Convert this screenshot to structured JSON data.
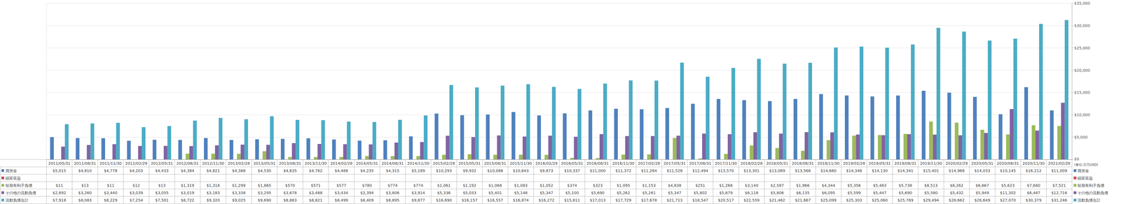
{
  "chart_data": {
    "type": "bar",
    "y_label": "(単位:百万USD)",
    "grid": true,
    "data_labels": true,
    "categories": [
      "2011/05/31",
      "2011/08/31",
      "2011/11/30",
      "2012/02/29",
      "2012/05/31",
      "2012/08/31",
      "2012/11/30",
      "2013/02/28",
      "2013/05/31",
      "2013/08/31",
      "2013/11/30",
      "2014/02/28",
      "2014/05/31",
      "2014/08/31",
      "2014/11/30",
      "2015/02/28",
      "2015/05/31",
      "2015/08/31",
      "2015/11/30",
      "2016/02/29",
      "2016/05/31",
      "2016/08/31",
      "2016/11/30",
      "2017/02/28",
      "2017/05/31",
      "2017/08/31",
      "2017/11/30",
      "2018/02/28",
      "2018/05/31",
      "2018/08/31",
      "2018/11/30",
      "2019/02/28",
      "2019/05/31",
      "2019/08/31",
      "2019/11/30",
      "2020/02/29",
      "2020/05/31",
      "2020/08/31",
      "2020/11/30",
      "2021/02/28"
    ],
    "ylim": [
      0,
      35000
    ],
    "yticks": [
      {
        "value": 0,
        "label": "$0"
      },
      {
        "value": 5000,
        "label": "$5,000"
      },
      {
        "value": 10000,
        "label": "$10,000"
      },
      {
        "value": 15000,
        "label": "$15,000"
      },
      {
        "value": 20000,
        "label": "$20,000"
      },
      {
        "value": 25000,
        "label": "$25,000"
      },
      {
        "value": 30000,
        "label": "$30,000"
      },
      {
        "value": 35000,
        "label": "$35,000"
      }
    ],
    "series": [
      {
        "name": "買掛金",
        "color": "#4f81bd",
        "values": [
          5015,
          4810,
          4778,
          4203,
          4433,
          4384,
          4821,
          4388,
          4530,
          4635,
          4762,
          4488,
          4235,
          4315,
          5189,
          10293,
          9932,
          10088,
          10643,
          9873,
          10337,
          11000,
          11372,
          11264,
          11528,
          12494,
          13570,
          13301,
          13089,
          13566,
          14660,
          14348,
          14130,
          14341,
          15401,
          14968,
          14033,
          10145,
          16212,
          11009
        ],
        "value_labels": [
          "$5,015",
          "$4,810",
          "$4,778",
          "$4,203",
          "$4,433",
          "$4,384",
          "$4,821",
          "$4,388",
          "$4,530",
          "$4,635",
          "$4,762",
          "$4,488",
          "$4,235",
          "$4,315",
          "$5,189",
          "$10,293",
          "$9,932",
          "$10,088",
          "$10,643",
          "$9,873",
          "$10,337",
          "$11,000",
          "$11,372",
          "$11,264",
          "$11,528",
          "$12,494",
          "$13,570",
          "$13,301",
          "$13,089",
          "$13,566",
          "$14,660",
          "$14,348",
          "$14,130",
          "$14,341",
          "$15,401",
          "$14,968",
          "$14,033",
          "$10,145",
          "$16,212",
          "$11,009"
        ]
      },
      {
        "name": "繰延収益",
        "color": "#c0504d",
        "values": [
          null,
          null,
          null,
          null,
          null,
          null,
          null,
          null,
          null,
          null,
          null,
          null,
          null,
          null,
          null,
          null,
          null,
          null,
          null,
          null,
          null,
          null,
          null,
          null,
          null,
          null,
          null,
          null,
          null,
          null,
          null,
          null,
          null,
          null,
          null,
          null,
          null,
          null,
          null,
          null
        ]
      },
      {
        "name": "短期有利子負債",
        "color": "#9bbb59",
        "values": [
          11,
          13,
          11,
          12,
          13,
          1319,
          1316,
          1299,
          1865,
          570,
          571,
          577,
          780,
          774,
          774,
          1061,
          1192,
          1068,
          1083,
          1052,
          374,
          323,
          1095,
          1153,
          4838,
          251,
          1268,
          3140,
          2587,
          1966,
          4344,
          5356,
          5483,
          5738,
          8513,
          8262,
          6667,
          5623,
          7680,
          7521
        ],
        "value_labels": [
          "$11",
          "$13",
          "$11",
          "$12",
          "$13",
          "$1,319",
          "$1,316",
          "$1,299",
          "$1,865",
          "$570",
          "$571",
          "$577",
          "$780",
          "$774",
          "$774",
          "$1,061",
          "$1,192",
          "$1,068",
          "$1,083",
          "$1,052",
          "$374",
          "$323",
          "$1,095",
          "$1,153",
          "$4,838",
          "$251",
          "$1,268",
          "$3,140",
          "$2,587",
          "$1,966",
          "$4,344",
          "$5,356",
          "$5,483",
          "$5,738",
          "$8,513",
          "$8,262",
          "$6,667",
          "$5,623",
          "$7,680",
          "$7,521"
        ]
      },
      {
        "name": "その他の流動負債",
        "color": "#8064a2",
        "values": [
          2892,
          3260,
          3440,
          3039,
          3055,
          3019,
          3183,
          3338,
          3295,
          3678,
          3488,
          3434,
          3394,
          3806,
          3914,
          5336,
          5033,
          5401,
          5148,
          5347,
          5100,
          5690,
          5262,
          5261,
          5347,
          5802,
          5679,
          6118,
          5806,
          6135,
          6095,
          5599,
          5447,
          5690,
          5580,
          5432,
          5949,
          11302,
          6487,
          12716
        ],
        "value_labels": [
          "$2,892",
          "$3,260",
          "$3,440",
          "$3,039",
          "$3,055",
          "$3,019",
          "$3,183",
          "$3,338",
          "$3,295",
          "$3,678",
          "$3,488",
          "$3,434",
          "$3,394",
          "$3,806",
          "$3,914",
          "$5,336",
          "$5,033",
          "$5,401",
          "$5,148",
          "$5,347",
          "$5,100",
          "$5,690",
          "$5,262",
          "$5,261",
          "$5,347",
          "$5,802",
          "$5,679",
          "$6,118",
          "$5,806",
          "$6,135",
          "$6,095",
          "$5,599",
          "$5,447",
          "$5,690",
          "$5,580",
          "$5,432",
          "$5,949",
          "$11,302",
          "$6,487",
          "$12,716"
        ]
      },
      {
        "name": "流動負債合計",
        "color": "#4bacc6",
        "values": [
          7918,
          8083,
          8229,
          7254,
          7501,
          8722,
          9320,
          9025,
          9690,
          8883,
          8821,
          8499,
          8409,
          8895,
          9877,
          16690,
          16157,
          16557,
          16874,
          16272,
          15811,
          17013,
          17729,
          17678,
          21713,
          18547,
          20517,
          22559,
          21482,
          21667,
          25099,
          25303,
          25060,
          25769,
          29494,
          28662,
          26649,
          27070,
          30379,
          31246
        ],
        "value_labels": [
          "$7,918",
          "$8,083",
          "$8,229",
          "$7,254",
          "$7,501",
          "$8,722",
          "$9,320",
          "$9,025",
          "$9,690",
          "$8,883",
          "$8,821",
          "$8,499",
          "$8,409",
          "$8,895",
          "$9,877",
          "$16,690",
          "$16,157",
          "$16,557",
          "$16,874",
          "$16,272",
          "$15,811",
          "$17,013",
          "$17,729",
          "$17,678",
          "$21,713",
          "$18,547",
          "$20,517",
          "$22,559",
          "$21,482",
          "$21,667",
          "$25,099",
          "$25,303",
          "$25,060",
          "$25,769",
          "$29,494",
          "$28,662",
          "$26,649",
          "$27,070",
          "$30,379",
          "$31,246"
        ]
      }
    ]
  }
}
